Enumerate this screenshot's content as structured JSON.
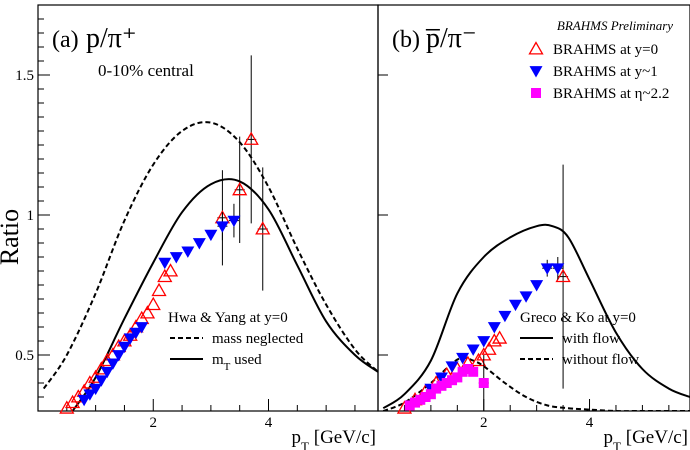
{
  "figure": {
    "ylabel": "Ratio",
    "watermark": "BRAHMS Preliminary",
    "legend": [
      {
        "label": "BRAHMS at y=0",
        "marker": "open-triangle-up",
        "color": "#ff0000"
      },
      {
        "label": "BRAHMS at y~1",
        "marker": "filled-triangle-down",
        "color": "#0000ff"
      },
      {
        "label": "BRAHMS at η~2.2",
        "marker": "filled-square",
        "color": "#ff00ff"
      }
    ]
  },
  "chart_data": [
    {
      "type": "scatter",
      "panel_label": "(a)",
      "title": "p/π⁺",
      "subtitle": "0-10% central",
      "xlabel": "p_T [GeV/c]",
      "ylabel": "Ratio",
      "xlim": [
        0,
        5.9
      ],
      "ylim": [
        0.3,
        1.75
      ],
      "xticks": [
        2,
        4
      ],
      "yticks": [
        0.5,
        1,
        1.5
      ],
      "ytick_labels": [
        "0.5",
        "1",
        "1.5"
      ],
      "model_title": "Hwa & Yang at y=0",
      "model_legend": [
        {
          "label": "mass neglected",
          "style": "dashed"
        },
        {
          "label": "m_T used",
          "style": "solid"
        }
      ],
      "series": [
        {
          "name": "BRAHMS at y=0",
          "marker": "open-triangle-up",
          "color": "#ff0000",
          "x": [
            0.5,
            0.6,
            0.7,
            0.8,
            0.9,
            1.0,
            1.1,
            1.2,
            1.3,
            1.4,
            1.5,
            1.6,
            1.7,
            1.8,
            1.9,
            2.0,
            2.1,
            2.2,
            2.3,
            3.2,
            3.5,
            3.7,
            3.9
          ],
          "y": [
            0.31,
            0.33,
            0.35,
            0.37,
            0.4,
            0.42,
            0.45,
            0.48,
            0.5,
            0.53,
            0.55,
            0.57,
            0.6,
            0.63,
            0.65,
            0.68,
            0.73,
            0.78,
            0.8,
            0.99,
            1.09,
            1.27,
            0.95
          ],
          "yerr": [
            0,
            0,
            0,
            0,
            0,
            0,
            0,
            0,
            0,
            0,
            0,
            0,
            0,
            0,
            0,
            0,
            0,
            0,
            0,
            0.17,
            0.19,
            0.3,
            0.22
          ]
        },
        {
          "name": "BRAHMS at y~1",
          "marker": "filled-triangle-down",
          "color": "#0000ff",
          "x": [
            0.8,
            0.9,
            1.0,
            1.1,
            1.2,
            1.3,
            1.4,
            1.5,
            1.6,
            1.7,
            1.8,
            2.2,
            2.4,
            2.6,
            2.8,
            3.0,
            3.2,
            3.4
          ],
          "y": [
            0.34,
            0.36,
            0.38,
            0.41,
            0.44,
            0.47,
            0.5,
            0.53,
            0.56,
            0.58,
            0.6,
            0.83,
            0.85,
            0.87,
            0.9,
            0.93,
            0.96,
            0.98
          ],
          "yerr": [
            0,
            0,
            0,
            0,
            0,
            0,
            0,
            0,
            0,
            0,
            0,
            0,
            0,
            0,
            0,
            0,
            0.05,
            0.06
          ]
        }
      ],
      "curves": [
        {
          "name": "mass neglected",
          "style": "dashed",
          "x": [
            0.1,
            0.5,
            1.0,
            1.5,
            2.0,
            2.5,
            3.0,
            3.5,
            4.0,
            4.5,
            5.0,
            5.5,
            5.9
          ],
          "y": [
            0.38,
            0.5,
            0.72,
            0.98,
            1.18,
            1.3,
            1.33,
            1.26,
            1.1,
            0.88,
            0.68,
            0.52,
            0.44
          ]
        },
        {
          "name": "m_T used",
          "style": "solid",
          "x": [
            0.6,
            1.0,
            1.5,
            2.0,
            2.5,
            3.0,
            3.5,
            4.0,
            4.5,
            5.0,
            5.5,
            5.9
          ],
          "y": [
            0.3,
            0.42,
            0.63,
            0.83,
            1.01,
            1.11,
            1.12,
            1.02,
            0.82,
            0.62,
            0.5,
            0.44
          ]
        }
      ]
    },
    {
      "type": "scatter",
      "panel_label": "(b)",
      "title": "p̅/π⁻",
      "xlabel": "p_T [GeV/c]",
      "xlim": [
        0,
        5.9
      ],
      "ylim": [
        0.3,
        1.75
      ],
      "xticks": [
        2,
        4
      ],
      "model_title": "Greco & Ko at y=0",
      "model_legend": [
        {
          "label": "with flow",
          "style": "solid"
        },
        {
          "label": "without flow",
          "style": "dashed"
        }
      ],
      "series": [
        {
          "name": "BRAHMS at y=0",
          "marker": "open-triangle-up",
          "color": "#ff0000",
          "x": [
            0.5,
            0.7,
            0.9,
            1.1,
            1.3,
            1.5,
            1.7,
            1.9,
            2.0,
            2.1,
            2.2,
            2.3,
            3.5
          ],
          "y": [
            0.31,
            0.34,
            0.37,
            0.4,
            0.43,
            0.45,
            0.47,
            0.48,
            0.5,
            0.52,
            0.55,
            0.56,
            0.78
          ],
          "yerr": [
            0,
            0,
            0,
            0,
            0,
            0,
            0,
            0,
            0,
            0,
            0,
            0,
            0.4
          ]
        },
        {
          "name": "BRAHMS at y~1",
          "marker": "filled-triangle-down",
          "color": "#0000ff",
          "x": [
            1.0,
            1.2,
            1.4,
            1.6,
            1.8,
            2.0,
            2.2,
            2.4,
            2.6,
            2.8,
            3.0,
            3.2,
            3.4
          ],
          "y": [
            0.38,
            0.42,
            0.46,
            0.49,
            0.52,
            0.55,
            0.6,
            0.64,
            0.68,
            0.71,
            0.75,
            0.81,
            0.81
          ],
          "yerr": [
            0,
            0,
            0,
            0,
            0,
            0,
            0,
            0,
            0,
            0,
            0,
            0.03,
            0.04
          ]
        },
        {
          "name": "BRAHMS at η~2.2",
          "marker": "filled-square",
          "color": "#ff00ff",
          "x": [
            0.6,
            0.7,
            0.8,
            0.9,
            1.0,
            1.1,
            1.2,
            1.3,
            1.4,
            1.5,
            1.6,
            1.7,
            1.8,
            2.0
          ],
          "y": [
            0.32,
            0.33,
            0.34,
            0.35,
            0.36,
            0.38,
            0.39,
            0.4,
            0.41,
            0.42,
            0.44,
            0.45,
            0.44,
            0.4
          ],
          "yerr": [
            0,
            0,
            0,
            0,
            0,
            0,
            0,
            0,
            0,
            0,
            0,
            0,
            0,
            0.1
          ]
        }
      ],
      "curves": [
        {
          "name": "with flow",
          "style": "solid",
          "x": [
            0.1,
            0.5,
            1.0,
            1.5,
            2.0,
            2.5,
            3.0,
            3.3,
            3.6,
            4.0,
            4.5,
            5.0,
            5.5,
            5.9
          ],
          "y": [
            0.31,
            0.36,
            0.48,
            0.72,
            0.85,
            0.92,
            0.96,
            0.96,
            0.92,
            0.77,
            0.58,
            0.45,
            0.38,
            0.35
          ]
        },
        {
          "name": "without flow",
          "style": "dashed",
          "x": [
            0.1,
            0.5,
            1.0,
            1.4,
            1.6,
            1.8,
            2.0,
            2.4,
            2.8,
            3.2,
            3.6,
            4.0,
            4.5,
            5.0,
            5.9
          ],
          "y": [
            0.3,
            0.33,
            0.4,
            0.47,
            0.49,
            0.48,
            0.46,
            0.4,
            0.35,
            0.32,
            0.31,
            0.305,
            0.3,
            0.3,
            0.3
          ]
        }
      ]
    }
  ]
}
